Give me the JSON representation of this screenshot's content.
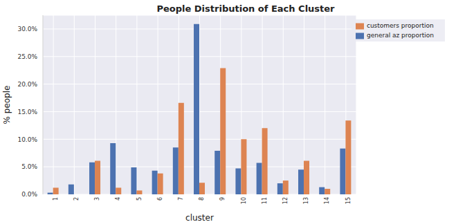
{
  "chart_data": {
    "type": "bar",
    "title": "People Distribution of Each Cluster",
    "x_label": "cluster",
    "y_label": "% people",
    "categories": [
      "1",
      "2",
      "3",
      "4",
      "5",
      "6",
      "7",
      "8",
      "9",
      "10",
      "11",
      "12",
      "13",
      "14",
      "15"
    ],
    "series": [
      {
        "name": "general az proportion",
        "color": "#4c72b0",
        "values": [
          0.3,
          1.8,
          5.8,
          9.3,
          4.9,
          4.3,
          8.5,
          30.9,
          7.9,
          4.7,
          5.7,
          2.0,
          4.5,
          1.3,
          8.3
        ]
      },
      {
        "name": "customers proportion",
        "color": "#dd8452",
        "values": [
          1.2,
          0.0,
          6.1,
          1.2,
          0.7,
          3.8,
          16.6,
          2.1,
          22.9,
          10.0,
          12.0,
          2.5,
          6.1,
          1.0,
          13.4
        ]
      }
    ],
    "ylim": [
      0,
      32.5
    ],
    "yticks": [
      {
        "value": 0,
        "label": "0.0%"
      },
      {
        "value": 5,
        "label": "5.0%"
      },
      {
        "value": 10,
        "label": "10.0%"
      },
      {
        "value": 15,
        "label": "15.0%"
      },
      {
        "value": 20,
        "label": "20.0%"
      },
      {
        "value": 25,
        "label": "25.0%"
      },
      {
        "value": 30,
        "label": "30.0%"
      }
    ],
    "grid": true,
    "legend": "upper right"
  }
}
